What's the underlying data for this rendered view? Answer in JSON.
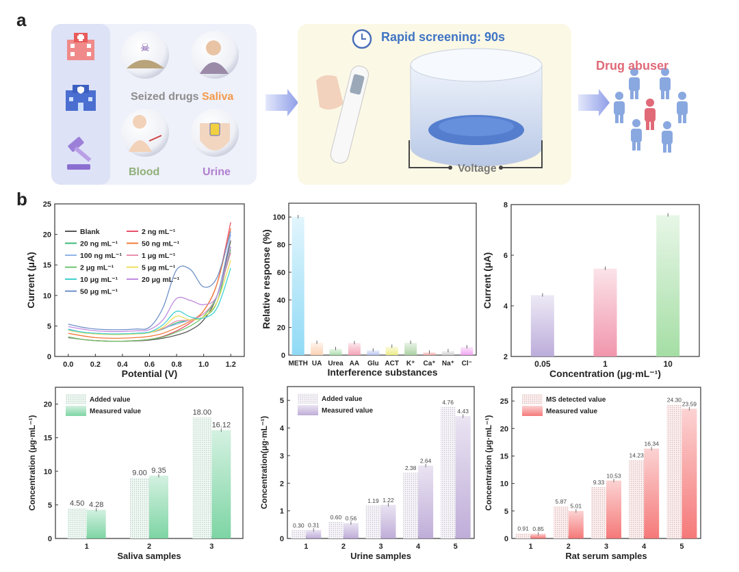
{
  "panel_labels": {
    "a": "a",
    "b": "b"
  },
  "schematic": {
    "sources": [
      "hospital-icon",
      "police-station-icon",
      "gavel-icon"
    ],
    "samples": [
      {
        "label": "Seized drugs",
        "color": "#8c8c8c"
      },
      {
        "label": "Saliva",
        "color": "#f2994a"
      },
      {
        "label": "Blood",
        "color": "#8fb078"
      },
      {
        "label": "Urine",
        "color": "#b07fd0"
      }
    ],
    "rapid_label": "Rapid screening: 90s",
    "rapid_color": "#3f74c4",
    "voltage_label": "Voltage",
    "result_label": "Drug abuser",
    "result_color": "#e06a78"
  },
  "chart_data": [
    {
      "type": "line",
      "xlabel": "Potential (V)",
      "ylabel": "Current (μA)",
      "xlim": [
        -0.1,
        1.3
      ],
      "ylim": [
        0,
        25
      ],
      "xticks": [
        "0.0",
        "0.2",
        "0.4",
        "0.6",
        "0.8",
        "1.0",
        "1.2"
      ],
      "yticks": [
        0,
        5,
        10,
        15,
        20,
        25
      ],
      "x": [
        0,
        0.1,
        0.2,
        0.3,
        0.4,
        0.5,
        0.6,
        0.7,
        0.8,
        0.9,
        1.0,
        1.1,
        1.2
      ],
      "series": [
        {
          "name": "Blank",
          "color": "#555555",
          "values": [
            3.1,
            2.8,
            2.6,
            2.5,
            2.5,
            2.55,
            2.7,
            3.0,
            3.5,
            4.3,
            6.0,
            10,
            19
          ]
        },
        {
          "name": "2 ng mL⁻¹",
          "color": "#e8506a",
          "values": [
            3.2,
            2.8,
            2.6,
            2.5,
            2.5,
            2.6,
            2.8,
            3.3,
            4.2,
            5.5,
            7.5,
            12,
            22
          ]
        },
        {
          "name": "20 ng mL⁻¹",
          "color": "#3cb878",
          "values": [
            4.4,
            4.0,
            3.8,
            3.7,
            3.7,
            3.7,
            3.9,
            4.5,
            5.5,
            6.0,
            6.5,
            9,
            18
          ]
        },
        {
          "name": "50 ng mL⁻¹",
          "color": "#f07b3a",
          "values": [
            3.8,
            3.4,
            3.1,
            3.0,
            3.0,
            3.1,
            3.3,
            3.8,
            4.7,
            5.8,
            7.5,
            12,
            21
          ]
        },
        {
          "name": "100  ng mL⁻¹",
          "color": "#8fb4e8",
          "values": [
            4.5,
            4.0,
            3.8,
            3.7,
            3.7,
            3.8,
            4.0,
            4.6,
            5.3,
            6.0,
            7.0,
            10,
            20
          ]
        },
        {
          "name": "1 μg mL⁻¹",
          "color": "#e890b0",
          "values": [
            4.3,
            3.9,
            3.7,
            3.6,
            3.6,
            3.7,
            3.9,
            4.6,
            5.8,
            6.0,
            7.0,
            10,
            17
          ]
        },
        {
          "name": "2 μg mL⁻¹",
          "color": "#6cc36c",
          "values": [
            3.2,
            2.8,
            2.6,
            2.5,
            2.5,
            2.6,
            2.8,
            3.2,
            4.0,
            5.0,
            6.6,
            10,
            17.5
          ]
        },
        {
          "name": "5 μg mL⁻¹",
          "color": "#ede05a",
          "values": [
            4.3,
            3.9,
            3.7,
            3.6,
            3.6,
            3.7,
            3.9,
            4.8,
            6.6,
            6.0,
            6.5,
            9,
            15.8
          ]
        },
        {
          "name": "10 μg mL⁻¹",
          "color": "#40d0d0",
          "values": [
            4.4,
            4.0,
            3.8,
            3.7,
            3.7,
            3.8,
            4.0,
            5.2,
            7.4,
            6.5,
            6.3,
            8,
            14.5
          ]
        },
        {
          "name": "20 μg mL⁻¹",
          "color": "#c08ae0",
          "values": [
            4.9,
            4.5,
            4.2,
            4.1,
            4.1,
            4.2,
            4.4,
            6.0,
            9.5,
            9.2,
            8.5,
            10,
            18
          ]
        },
        {
          "name": "50 μg mL⁻¹",
          "color": "#6e8fc8",
          "values": [
            5.3,
            4.8,
            4.5,
            4.4,
            4.4,
            4.5,
            4.8,
            8.0,
            14.2,
            14.3,
            11.4,
            13,
            20.5
          ]
        }
      ]
    },
    {
      "type": "bar",
      "xlabel": "Interference substances",
      "ylabel": "Relative response (%)",
      "ylim": [
        0,
        110
      ],
      "yticks": [
        0,
        20,
        40,
        60,
        80,
        100
      ],
      "categories": [
        "METH",
        "UA",
        "Urea",
        "AA",
        "Glu",
        "ACT",
        "K⁺",
        "Ca⁺",
        "Na⁺",
        "Cl⁻"
      ],
      "values": [
        100,
        9,
        4.5,
        8.8,
        3.5,
        6.2,
        9,
        2,
        3,
        5.8
      ],
      "colors": [
        "#8ad8f5",
        "#fbd0b0",
        "#a8dca8",
        "#f4a0b4",
        "#b4c0f0",
        "#ecec80",
        "#a8d0a0",
        "#f4a0a0",
        "#d0d0d0",
        "#f0a0f0"
      ]
    },
    {
      "type": "bar",
      "xlabel": "Concentration (μg·mL⁻¹)",
      "ylabel": "Current (μA)",
      "ylim": [
        2,
        8
      ],
      "yticks": [
        2,
        4,
        6,
        8
      ],
      "categories": [
        "0.05",
        "1",
        "10"
      ],
      "values": [
        4.42,
        5.47,
        7.58
      ],
      "colors": [
        "#b8a8d8",
        "#f090a8",
        "#a0dca0"
      ]
    },
    {
      "type": "bar",
      "xlabel": "Saliva samples",
      "ylabel": "Concentration (μg·mL⁻¹)",
      "ylim": [
        0,
        22.5
      ],
      "yticks": [
        0,
        5,
        10,
        15,
        20
      ],
      "categories": [
        "1",
        "2",
        "3"
      ],
      "color": "#6fd09a",
      "series": [
        {
          "name": "Added value",
          "values": [
            4.5,
            9.0,
            18.0
          ],
          "labels": [
            "4.50",
            "9.00",
            "18.00"
          ]
        },
        {
          "name": "Measured value",
          "values": [
            4.28,
            9.35,
            16.12
          ],
          "labels": [
            "4.28",
            "9.35",
            "16.12"
          ]
        }
      ]
    },
    {
      "type": "bar",
      "xlabel": "Urine samples",
      "ylabel": "Concentration(μg·mL⁻¹)",
      "ylim": [
        0,
        5.5
      ],
      "yticks": [
        0,
        1,
        2,
        3,
        4,
        5
      ],
      "categories": [
        "1",
        "2",
        "3",
        "4",
        "5"
      ],
      "color": "#b8a4d4",
      "series": [
        {
          "name": "Added value",
          "values": [
            0.3,
            0.6,
            1.19,
            2.38,
            4.76
          ],
          "labels": [
            "0.30",
            "0.60",
            "1.19",
            "2.38",
            "4.76"
          ]
        },
        {
          "name": "Measured value",
          "values": [
            0.31,
            0.56,
            1.22,
            2.64,
            4.43
          ],
          "labels": [
            "0.31",
            "0.56",
            "1.22",
            "2.64",
            "4.43"
          ]
        }
      ]
    },
    {
      "type": "bar",
      "xlabel": "Rat serum samples",
      "ylabel": "Concentration (μg·mL⁻¹)",
      "ylim": [
        0,
        27.5
      ],
      "yticks": [
        0,
        5,
        10,
        15,
        20,
        25
      ],
      "categories": [
        "1",
        "2",
        "3",
        "4",
        "5"
      ],
      "color": "#f46a6a",
      "series": [
        {
          "name": "MS detected value",
          "values": [
            0.91,
            5.87,
            9.33,
            14.23,
            24.3
          ],
          "labels": [
            "0.91",
            "5.87",
            "9.33",
            "14.23",
            "24.30"
          ]
        },
        {
          "name": "Measured value",
          "values": [
            0.85,
            5.01,
            10.53,
            16.34,
            23.59
          ],
          "labels": [
            "0.85",
            "5.01",
            "10.53",
            "16.34",
            "23.59"
          ]
        }
      ]
    }
  ]
}
